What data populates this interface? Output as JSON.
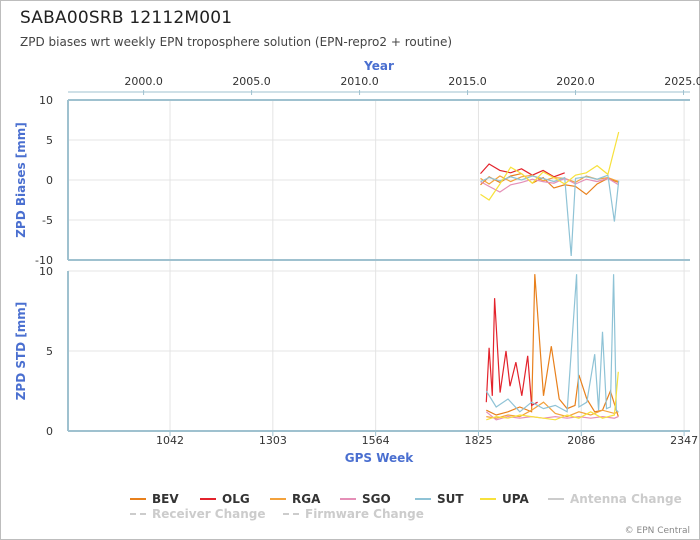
{
  "header": {
    "title": "SABA00SRB 12112M001",
    "subtitle": "ZPD biases wrt weekly EPN troposphere solution (EPN-repro2 + routine)"
  },
  "footer": {
    "credits": "© EPN Central"
  },
  "colors": {
    "axis_title": "#4a6fd0",
    "axis_line": "#9fc1cf",
    "grid": "#e4e4e4",
    "text": "#333333"
  },
  "chart_data": [
    {
      "type": "line",
      "title": "",
      "top_axis": {
        "title": "Year",
        "ticks": [
          2000,
          2005,
          2010,
          2015,
          2020,
          2025
        ],
        "tick_labels": [
          "2000.0",
          "2005.0",
          "2010.0",
          "2015.0",
          "2020.0",
          "2025.0"
        ],
        "range": [
          1996.5,
          2025.3
        ]
      },
      "ylabel": "ZPD Biases [mm]",
      "ylim": [
        -10,
        10
      ],
      "yticks": [
        -10,
        -5,
        0,
        5,
        10
      ],
      "grid": true,
      "approx_data_range_year": [
        2015.5,
        2022.1
      ],
      "series": [
        {
          "name": "BEV",
          "color": "#e8801c",
          "x": [
            2015.6,
            2016.0,
            2016.5,
            2017.0,
            2017.5,
            2018.0,
            2018.5,
            2019.0,
            2019.5,
            2020.0,
            2020.5,
            2021.0,
            2021.5,
            2022.0
          ],
          "y": [
            -0.6,
            0.4,
            -0.3,
            0.5,
            0.8,
            -0.4,
            0.3,
            -1.0,
            -0.6,
            -0.8,
            -1.8,
            -0.5,
            0.2,
            -0.3
          ]
        },
        {
          "name": "OLG",
          "color": "#e3232c",
          "x": [
            2015.6,
            2016.0,
            2016.5,
            2017.0,
            2017.5,
            2018.0,
            2018.5,
            2019.0,
            2019.5
          ],
          "y": [
            0.8,
            2.0,
            1.2,
            0.9,
            1.4,
            0.6,
            1.2,
            0.4,
            0.9
          ]
        },
        {
          "name": "RGA",
          "color": "#f3a23c",
          "x": [
            2015.6,
            2016.0,
            2016.5,
            2017.0,
            2017.5,
            2018.0,
            2018.5,
            2019.0,
            2019.5,
            2020.0,
            2020.5,
            2021.0,
            2021.5,
            2022.0
          ],
          "y": [
            0.2,
            -0.5,
            0.5,
            -0.2,
            0.4,
            0.6,
            -0.1,
            0.3,
            0.2,
            -0.3,
            0.5,
            0.1,
            0.3,
            -0.2
          ]
        },
        {
          "name": "SGO",
          "color": "#e58fb7",
          "x": [
            2015.6,
            2016.0,
            2016.5,
            2017.0,
            2017.5,
            2018.0,
            2018.5,
            2019.0,
            2019.5,
            2020.0,
            2020.5,
            2021.0,
            2021.5,
            2022.0
          ],
          "y": [
            -0.2,
            -0.8,
            -1.5,
            -0.6,
            -0.3,
            0.1,
            -0.2,
            -0.4,
            0.2,
            -0.5,
            0.1,
            -0.2,
            0.2,
            -0.6
          ]
        },
        {
          "name": "SUT",
          "color": "#8fc3d6",
          "x": [
            2015.6,
            2016.0,
            2016.5,
            2017.0,
            2017.5,
            2018.0,
            2018.5,
            2019.0,
            2019.5,
            2019.8,
            2020.0,
            2020.5,
            2021.0,
            2021.5,
            2021.8,
            2022.0
          ],
          "y": [
            -0.2,
            0.3,
            -0.1,
            0.4,
            0.0,
            0.5,
            0.2,
            -0.2,
            0.3,
            -9.5,
            0.2,
            0.4,
            0.1,
            0.6,
            -5.2,
            -0.1
          ]
        },
        {
          "name": "UPA",
          "color": "#f7e13c",
          "x": [
            2015.6,
            2016.0,
            2016.5,
            2017.0,
            2017.5,
            2018.0,
            2018.5,
            2019.0,
            2019.5,
            2020.0,
            2020.5,
            2021.0,
            2021.5,
            2022.0
          ],
          "y": [
            -1.8,
            -2.5,
            -0.5,
            1.6,
            0.8,
            -0.4,
            1.0,
            0.3,
            -0.5,
            0.6,
            0.9,
            1.8,
            0.7,
            6.0
          ]
        }
      ]
    },
    {
      "type": "line",
      "title": "",
      "xlabel": "GPS Week",
      "ylabel": "ZPD STD [mm]",
      "ylim": [
        0,
        10
      ],
      "yticks": [
        0,
        5,
        10
      ],
      "xticks": [
        1042,
        1303,
        1564,
        1825,
        2086,
        2347
      ],
      "xlim": [
        783,
        2362
      ],
      "grid": true,
      "series": [
        {
          "name": "BEV",
          "color": "#e8801c",
          "x": [
            1845,
            1870,
            1900,
            1930,
            1960,
            1968,
            1990,
            2010,
            2030,
            2050,
            2070,
            2080,
            2100,
            2120,
            2140,
            2160,
            2180
          ],
          "y": [
            1.3,
            1.0,
            1.2,
            1.5,
            1.2,
            9.8,
            2.2,
            5.3,
            2.0,
            1.4,
            1.6,
            3.5,
            2.0,
            1.2,
            1.3,
            2.5,
            0.9
          ]
        },
        {
          "name": "OLG",
          "color": "#e3232c",
          "x": [
            1845,
            1852,
            1860,
            1866,
            1880,
            1895,
            1905,
            1920,
            1935,
            1950,
            1960,
            1975
          ],
          "y": [
            1.8,
            5.2,
            2.2,
            8.3,
            2.4,
            5.0,
            2.8,
            4.3,
            2.2,
            4.7,
            1.6,
            1.8
          ]
        },
        {
          "name": "RGA",
          "color": "#f3a23c",
          "x": [
            1845,
            1870,
            1900,
            1930,
            1960,
            1990,
            2020,
            2050,
            2080,
            2110,
            2140,
            2170,
            2180
          ],
          "y": [
            0.9,
            0.8,
            1.0,
            0.9,
            1.3,
            1.8,
            1.1,
            0.9,
            1.2,
            1.0,
            1.3,
            1.1,
            1.2
          ]
        },
        {
          "name": "SGO",
          "color": "#e58fb7",
          "x": [
            1845,
            1870,
            1900,
            1930,
            1960,
            1990,
            2020,
            2050,
            2080,
            2110,
            2140,
            2170,
            2180
          ],
          "y": [
            1.2,
            0.7,
            0.9,
            0.8,
            0.9,
            0.8,
            0.9,
            0.8,
            0.9,
            0.8,
            0.9,
            0.8,
            0.9
          ]
        },
        {
          "name": "SUT",
          "color": "#8fc3d6",
          "x": [
            1845,
            1870,
            1900,
            1930,
            1960,
            1990,
            2020,
            2050,
            2074,
            2080,
            2100,
            2120,
            2130,
            2140,
            2150,
            2160,
            2168,
            2175,
            2180
          ],
          "y": [
            2.5,
            1.5,
            2.0,
            1.2,
            1.8,
            1.4,
            1.6,
            1.2,
            9.8,
            1.5,
            1.8,
            4.8,
            1.3,
            6.2,
            1.4,
            1.5,
            9.8,
            1.3,
            1.2
          ]
        },
        {
          "name": "UPA",
          "color": "#f7e13c",
          "x": [
            1845,
            1870,
            1900,
            1930,
            1960,
            1990,
            2020,
            2050,
            2080,
            2110,
            2140,
            2170,
            2180
          ],
          "y": [
            0.7,
            0.9,
            0.8,
            1.0,
            0.9,
            0.8,
            0.7,
            1.0,
            0.8,
            1.2,
            0.8,
            1.0,
            3.7
          ]
        }
      ]
    }
  ],
  "legend": [
    {
      "label": "BEV",
      "color": "#e8801c",
      "style": "solid"
    },
    {
      "label": "OLG",
      "color": "#e3232c",
      "style": "solid"
    },
    {
      "label": "RGA",
      "color": "#f3a23c",
      "style": "solid"
    },
    {
      "label": "SGO",
      "color": "#e58fb7",
      "style": "solid"
    },
    {
      "label": "SUT",
      "color": "#8fc3d6",
      "style": "solid"
    },
    {
      "label": "UPA",
      "color": "#f7e13c",
      "style": "solid"
    },
    {
      "label": "Antenna Change",
      "color": "#cccccc",
      "style": "solid",
      "muted": true
    },
    {
      "label": "Receiver Change",
      "color": "#cccccc",
      "style": "dash",
      "muted": true
    },
    {
      "label": "Firmware Change",
      "color": "#cccccc",
      "style": "dash",
      "muted": true
    }
  ]
}
